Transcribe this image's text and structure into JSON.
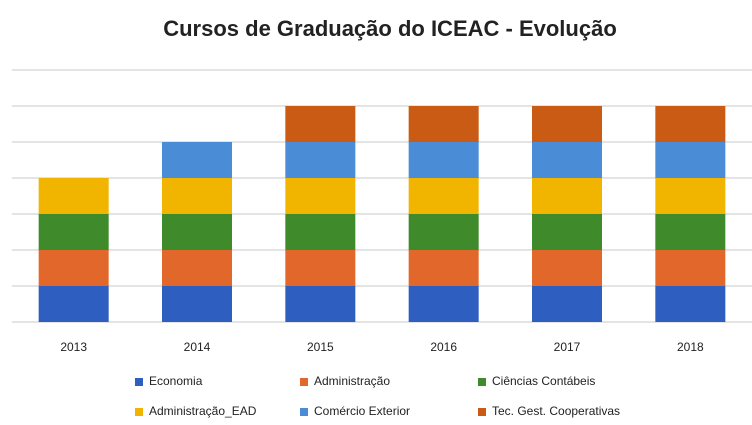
{
  "chart_data": {
    "type": "stacked_bar",
    "title": "Cursos de Graduação do ICEAC - Evolução",
    "categories": [
      "2013",
      "2014",
      "2015",
      "2016",
      "2017",
      "2018"
    ],
    "series": [
      {
        "name": "Economia",
        "color": "#2e5fc0",
        "values": [
          1,
          1,
          1,
          1,
          1,
          1
        ]
      },
      {
        "name": "Administração",
        "color": "#e2672b",
        "values": [
          1,
          1,
          1,
          1,
          1,
          1
        ]
      },
      {
        "name": "Ciências Contábeis",
        "color": "#3f8b2b",
        "values": [
          1,
          1,
          1,
          1,
          1,
          1
        ]
      },
      {
        "name": "Administração_EAD",
        "color": "#f1b500",
        "values": [
          1,
          1,
          1,
          1,
          1,
          1
        ]
      },
      {
        "name": "Comércio Exterior",
        "color": "#4b8cd6",
        "values": [
          0,
          1,
          1,
          1,
          1,
          1
        ]
      },
      {
        "name": "Tec. Gest. Cooperativas",
        "color": "#c95b15",
        "values": [
          0,
          0,
          1,
          1,
          1,
          1
        ]
      }
    ],
    "ylim": [
      0,
      7
    ],
    "yticks": [
      0,
      1,
      2,
      3,
      4,
      5,
      6,
      7
    ],
    "grid": true,
    "legend": "bottom"
  }
}
